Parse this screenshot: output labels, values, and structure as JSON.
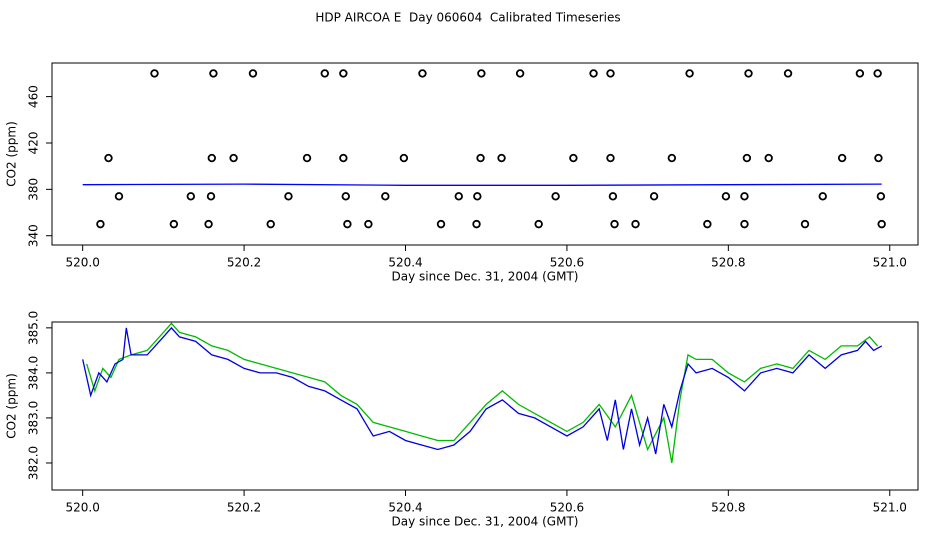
{
  "chart_data": [
    {
      "type": "scatter",
      "title": "HDP AIRCOA E  Day 060604  Calibrated Timeseries",
      "x_label": "Day since Dec. 31, 2004 (GMT)",
      "y_label": "CO2 (ppm)",
      "xlim": [
        519.962,
        521.035
      ],
      "ylim": [
        332,
        489
      ],
      "xticks": [
        {
          "value": 520,
          "label": "520.0"
        },
        520.2,
        520.4,
        520.6,
        520.8,
        {
          "value": 521,
          "label": "521.0"
        }
      ],
      "yticks": [
        340,
        380,
        420,
        460
      ],
      "series": [
        {
          "type": "scatter",
          "color": "#000000",
          "x": [
            520.089,
            520.162,
            520.211,
            520.3,
            520.323,
            520.421,
            520.494,
            520.542,
            520.633,
            520.654,
            520.752,
            520.825,
            520.874,
            520.963,
            520.985,
            520.032,
            520.16,
            520.187,
            520.278,
            520.323,
            520.398,
            520.493,
            520.519,
            520.608,
            520.654,
            520.73,
            520.823,
            520.85,
            520.941,
            520.986,
            520.045,
            520.134,
            520.159,
            520.255,
            520.326,
            520.375,
            520.466,
            520.489,
            520.586,
            520.657,
            520.708,
            520.797,
            520.82,
            520.917,
            520.989,
            520.022,
            520.113,
            520.156,
            520.233,
            520.328,
            520.354,
            520.444,
            520.488,
            520.565,
            520.659,
            520.685,
            520.774,
            520.82,
            520.895,
            520.99
          ],
          "values": [
            480,
            480,
            480,
            480,
            480,
            480,
            480,
            480,
            480,
            480,
            480,
            480,
            480,
            480,
            480,
            407,
            407,
            407,
            407,
            407,
            407,
            407,
            407,
            407,
            407,
            407,
            407,
            407,
            407,
            407,
            374,
            374,
            374,
            374,
            374,
            374,
            374,
            374,
            374,
            374,
            374,
            374,
            374,
            374,
            374,
            350,
            350,
            350,
            350,
            350,
            350,
            350,
            350,
            350,
            350,
            350,
            350,
            350,
            350,
            350
          ]
        },
        {
          "type": "line",
          "color": "#0000ff",
          "x": [
            520.0,
            520.2,
            520.4,
            520.6,
            520.8,
            520.99
          ],
          "values": [
            384,
            384.5,
            383.5,
            383.5,
            384,
            384.5
          ]
        }
      ]
    },
    {
      "type": "line",
      "x_label": "Day since Dec. 31, 2004 (GMT)",
      "y_label": "CO2 (ppm)",
      "xlim": [
        519.962,
        521.035
      ],
      "ylim": [
        381.4,
        385.13
      ],
      "xticks": [
        {
          "value": 520,
          "label": "520.0"
        },
        520.2,
        520.4,
        520.6,
        520.8,
        {
          "value": 521,
          "label": "521.0"
        }
      ],
      "yticks": [
        {
          "value": 382,
          "label": "382.0"
        },
        {
          "value": 383,
          "label": "383.0"
        },
        {
          "value": 384,
          "label": "384.0"
        },
        {
          "value": 385,
          "label": "385.0"
        }
      ],
      "series": [
        {
          "type": "line",
          "color": "#00bb00",
          "x": [
            520.005,
            520.015,
            520.025,
            520.035,
            520.045,
            520.06,
            520.08,
            520.1,
            520.11,
            520.12,
            520.14,
            520.16,
            520.18,
            520.2,
            520.22,
            520.24,
            520.26,
            520.28,
            520.3,
            520.32,
            520.34,
            520.36,
            520.38,
            520.4,
            520.42,
            520.44,
            520.46,
            520.48,
            520.5,
            520.52,
            520.54,
            520.56,
            520.58,
            520.6,
            520.62,
            520.64,
            520.66,
            520.68,
            520.7,
            520.72,
            520.73,
            520.74,
            520.75,
            520.76,
            520.78,
            520.8,
            520.82,
            520.84,
            520.86,
            520.88,
            520.9,
            520.92,
            520.94,
            520.96,
            520.975,
            520.985
          ],
          "values": [
            384.2,
            383.6,
            384.1,
            383.9,
            384.3,
            384.4,
            384.5,
            384.9,
            385.1,
            384.9,
            384.8,
            384.6,
            384.5,
            384.3,
            384.2,
            384.1,
            384.0,
            383.9,
            383.8,
            383.5,
            383.3,
            382.9,
            382.8,
            382.7,
            382.6,
            382.5,
            382.5,
            382.9,
            383.3,
            383.6,
            383.3,
            383.1,
            382.9,
            382.7,
            382.9,
            383.3,
            382.8,
            383.5,
            382.3,
            383.0,
            382.0,
            383.4,
            384.4,
            384.3,
            384.3,
            384.0,
            383.8,
            384.1,
            384.2,
            384.1,
            384.5,
            384.3,
            384.6,
            384.6,
            384.8,
            384.6
          ]
        },
        {
          "type": "line",
          "color": "#0000dd",
          "x": [
            520.0,
            520.01,
            520.02,
            520.03,
            520.04,
            520.05,
            520.054,
            520.06,
            520.08,
            520.1,
            520.11,
            520.12,
            520.14,
            520.16,
            520.18,
            520.2,
            520.22,
            520.24,
            520.26,
            520.28,
            520.3,
            520.32,
            520.34,
            520.35,
            520.36,
            520.38,
            520.4,
            520.42,
            520.44,
            520.46,
            520.48,
            520.5,
            520.52,
            520.54,
            520.56,
            520.58,
            520.6,
            520.62,
            520.64,
            520.65,
            520.66,
            520.67,
            520.68,
            520.69,
            520.7,
            520.71,
            520.72,
            520.73,
            520.74,
            520.75,
            520.76,
            520.78,
            520.8,
            520.82,
            520.84,
            520.86,
            520.88,
            520.9,
            520.92,
            520.94,
            520.96,
            520.97,
            520.98,
            520.99
          ],
          "values": [
            384.3,
            383.5,
            384.0,
            383.8,
            384.2,
            384.3,
            385.0,
            384.4,
            384.4,
            384.8,
            385.0,
            384.8,
            384.7,
            384.4,
            384.3,
            384.1,
            384.0,
            384.0,
            383.9,
            383.7,
            383.6,
            383.4,
            383.2,
            382.9,
            382.6,
            382.7,
            382.5,
            382.4,
            382.3,
            382.4,
            382.7,
            383.2,
            383.4,
            383.1,
            383.0,
            382.8,
            382.6,
            382.8,
            383.2,
            382.5,
            383.4,
            382.3,
            383.2,
            382.4,
            383.0,
            382.2,
            383.3,
            382.8,
            383.6,
            384.2,
            384.0,
            384.1,
            383.9,
            383.6,
            384.0,
            384.1,
            384.0,
            384.4,
            384.1,
            384.4,
            384.5,
            384.7,
            384.5,
            384.6
          ]
        }
      ]
    }
  ]
}
